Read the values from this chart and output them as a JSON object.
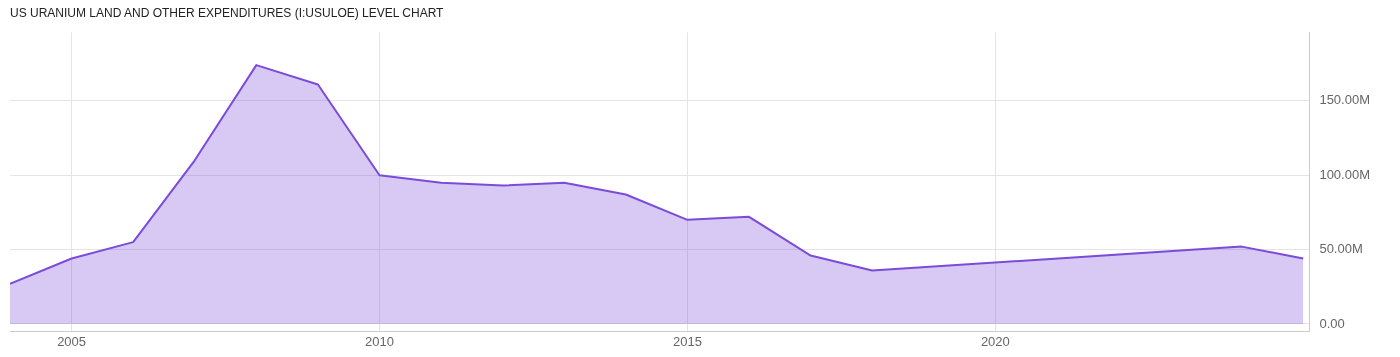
{
  "chart_data": {
    "type": "area",
    "title": "US URANIUM LAND AND OTHER EXPENDITURES (I:USULOE) LEVEL CHART",
    "series": [
      {
        "color": "#7b4bd9",
        "x": [
          2004,
          2005,
          2006,
          2007,
          2008,
          2009,
          2010,
          2011,
          2012,
          2013,
          2014,
          2015,
          2016,
          2017,
          2018,
          2024,
          2025
        ],
        "values": [
          27,
          44,
          55,
          110,
          174,
          161,
          100,
          95,
          93,
          95,
          87,
          70,
          72,
          46,
          36,
          52,
          44
        ]
      }
    ],
    "xlim": [
      2004,
      2025.1
    ],
    "xticks": [
      2005,
      2010,
      2015,
      2020
    ],
    "ylim": [
      -5,
      196
    ],
    "yticks": [
      {
        "value": 0,
        "label": "0.00"
      },
      {
        "value": 50,
        "label": "50.00M"
      },
      {
        "value": 100,
        "label": "100.00M"
      },
      {
        "value": 150,
        "label": "150.00M"
      }
    ],
    "grid": true,
    "legend": false
  }
}
